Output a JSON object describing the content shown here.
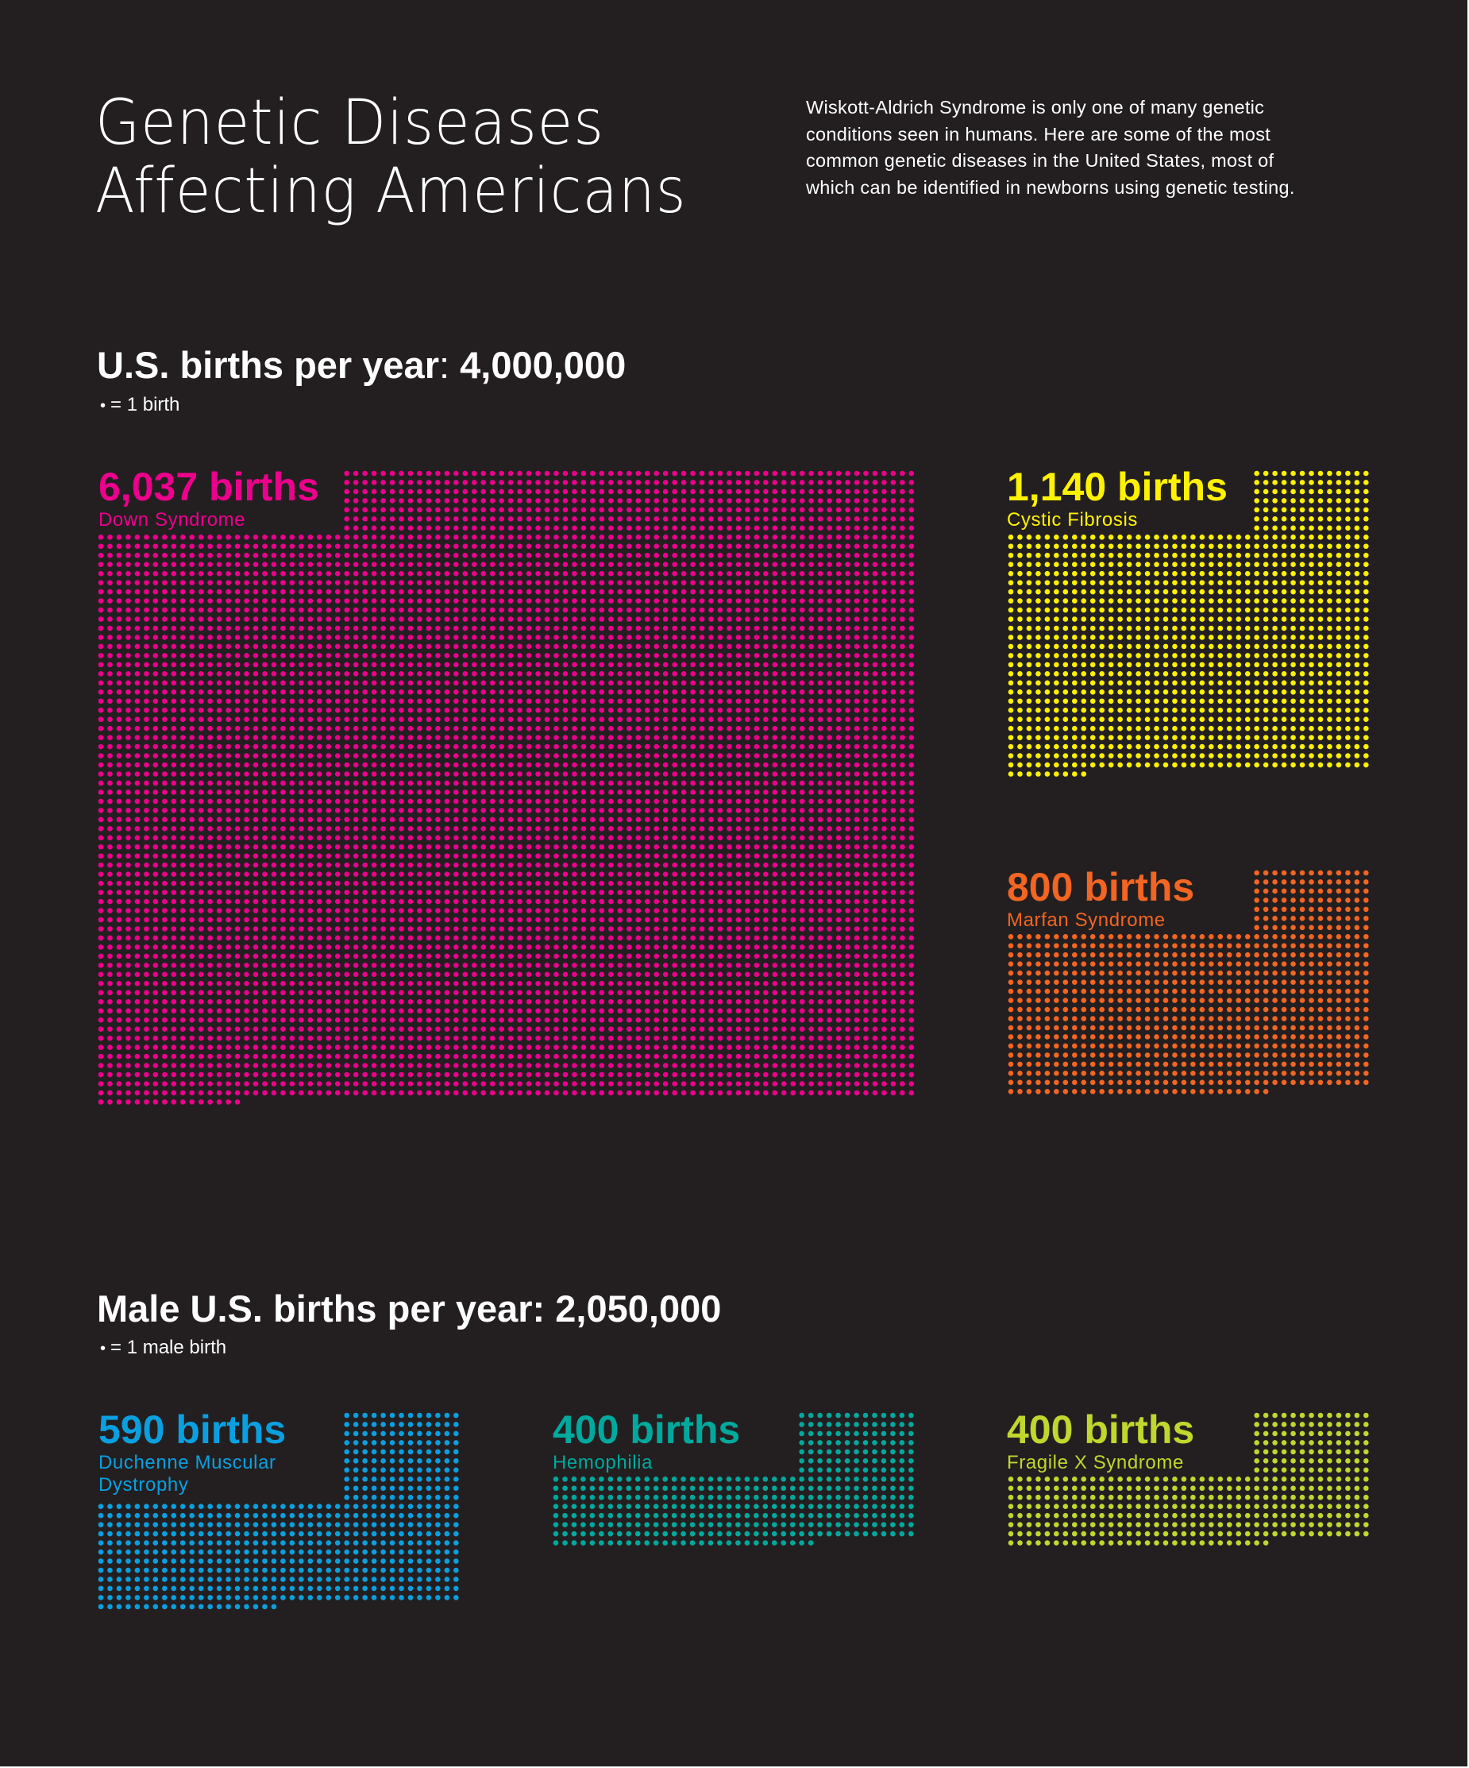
{
  "title": {
    "line1": "Genetic Diseases",
    "line2": "Affecting Americans"
  },
  "intro": {
    "lines": [
      "Wiskott-Aldrich Syndrome is only one of many genetic",
      "conditions seen in humans. Here are some of the most",
      "common genetic diseases in the United States, most of",
      "which can be identified in newborns using genetic testing."
    ]
  },
  "sections": [
    {
      "heading_label": "U.S. births per year",
      "heading_value": "4,000,000",
      "legend_symbol": "•",
      "legend_text": "= 1 birth"
    },
    {
      "heading_label": "Male U.S. births per year",
      "heading_value": "2,050,000",
      "legend_symbol": "•",
      "legend_text": "= 1 male birth"
    }
  ],
  "chart_data": {
    "type": "table",
    "title": "Genetic Diseases Affecting Americans",
    "unit": "one dot = one birth",
    "groups": [
      {
        "population": "U.S. births per year",
        "population_total": 4000000,
        "diseases": [
          {
            "name": "Down Syndrome",
            "births": 6037,
            "label": "6,037 births",
            "color": "#ec008c"
          },
          {
            "name": "Cystic Fibrosis",
            "births": 1140,
            "label": "1,140 births",
            "color": "#fff200"
          },
          {
            "name": "Marfan Syndrome",
            "births": 800,
            "label": "800 births",
            "color": "#f26522"
          }
        ]
      },
      {
        "population": "Male U.S. births per year",
        "population_total": 2050000,
        "diseases": [
          {
            "name": "Duchenne Muscular Dystrophy",
            "name_lines": [
              "Duchenne Muscular",
              "Dystrophy"
            ],
            "births": 590,
            "label": "590 births",
            "color": "#0aa0e0"
          },
          {
            "name": "Hemophilia",
            "births": 400,
            "label": "400 births",
            "color": "#00a99d"
          },
          {
            "name": "Fragile X Syndrome",
            "births": 400,
            "label": "400 births",
            "color": "#c1d72e"
          }
        ]
      }
    ]
  }
}
